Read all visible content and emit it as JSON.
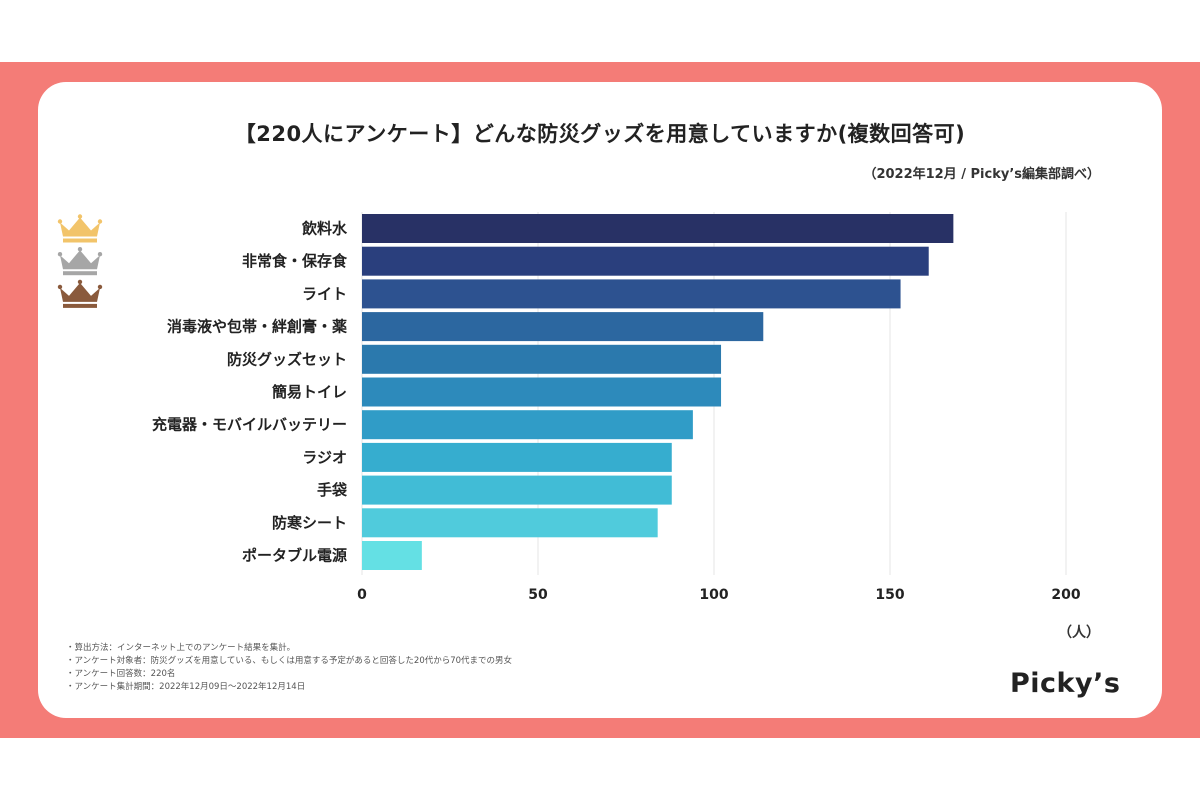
{
  "header": {
    "title": "【220人にアンケート】どんな防災グッズを用意していますか(複数回答可)",
    "source": "（2022年12月 / Picky’s編集部調べ）"
  },
  "chart_data": {
    "type": "bar",
    "orientation": "horizontal",
    "categories": [
      "飲料水",
      "非常食・保存食",
      "ライト",
      "消毒液や包帯・絆創膏・薬",
      "防災グッズセット",
      "簡易トイレ",
      "充電器・モバイルバッテリー",
      "ラジオ",
      "手袋",
      "防寒シート",
      "ポータブル電源"
    ],
    "values": [
      168,
      161,
      153,
      114,
      102,
      102,
      94,
      88,
      88,
      84,
      17
    ],
    "bar_colors": [
      "#283165",
      "#2a3f7d",
      "#2d5290",
      "#2c67a0",
      "#2b79ad",
      "#2d8abb",
      "#309cc7",
      "#36adcf",
      "#41bcd6",
      "#50cbdc",
      "#64e0e4"
    ],
    "rank_icons": [
      {
        "name": "crown-gold-icon",
        "color": "#f2c46a"
      },
      {
        "name": "crown-silver-icon",
        "color": "#a6a6a6"
      },
      {
        "name": "crown-bronze-icon",
        "color": "#8a5a3c"
      }
    ],
    "x_ticks": [
      0,
      50,
      100,
      150,
      200
    ],
    "xlim": [
      0,
      200
    ],
    "unit": "（人）",
    "grid": true
  },
  "notes": [
    "・算出方法：インターネット上でのアンケート結果を集計。",
    "・アンケート対象者：防災グッズを用意している、もしくは用意する予定があると回答した20代から70代までの男女",
    "・アンケート回答数：220名",
    "・アンケート集計期間：2022年12月09日〜2022年12月14日"
  ],
  "brand": {
    "logo": "Picky’s"
  }
}
